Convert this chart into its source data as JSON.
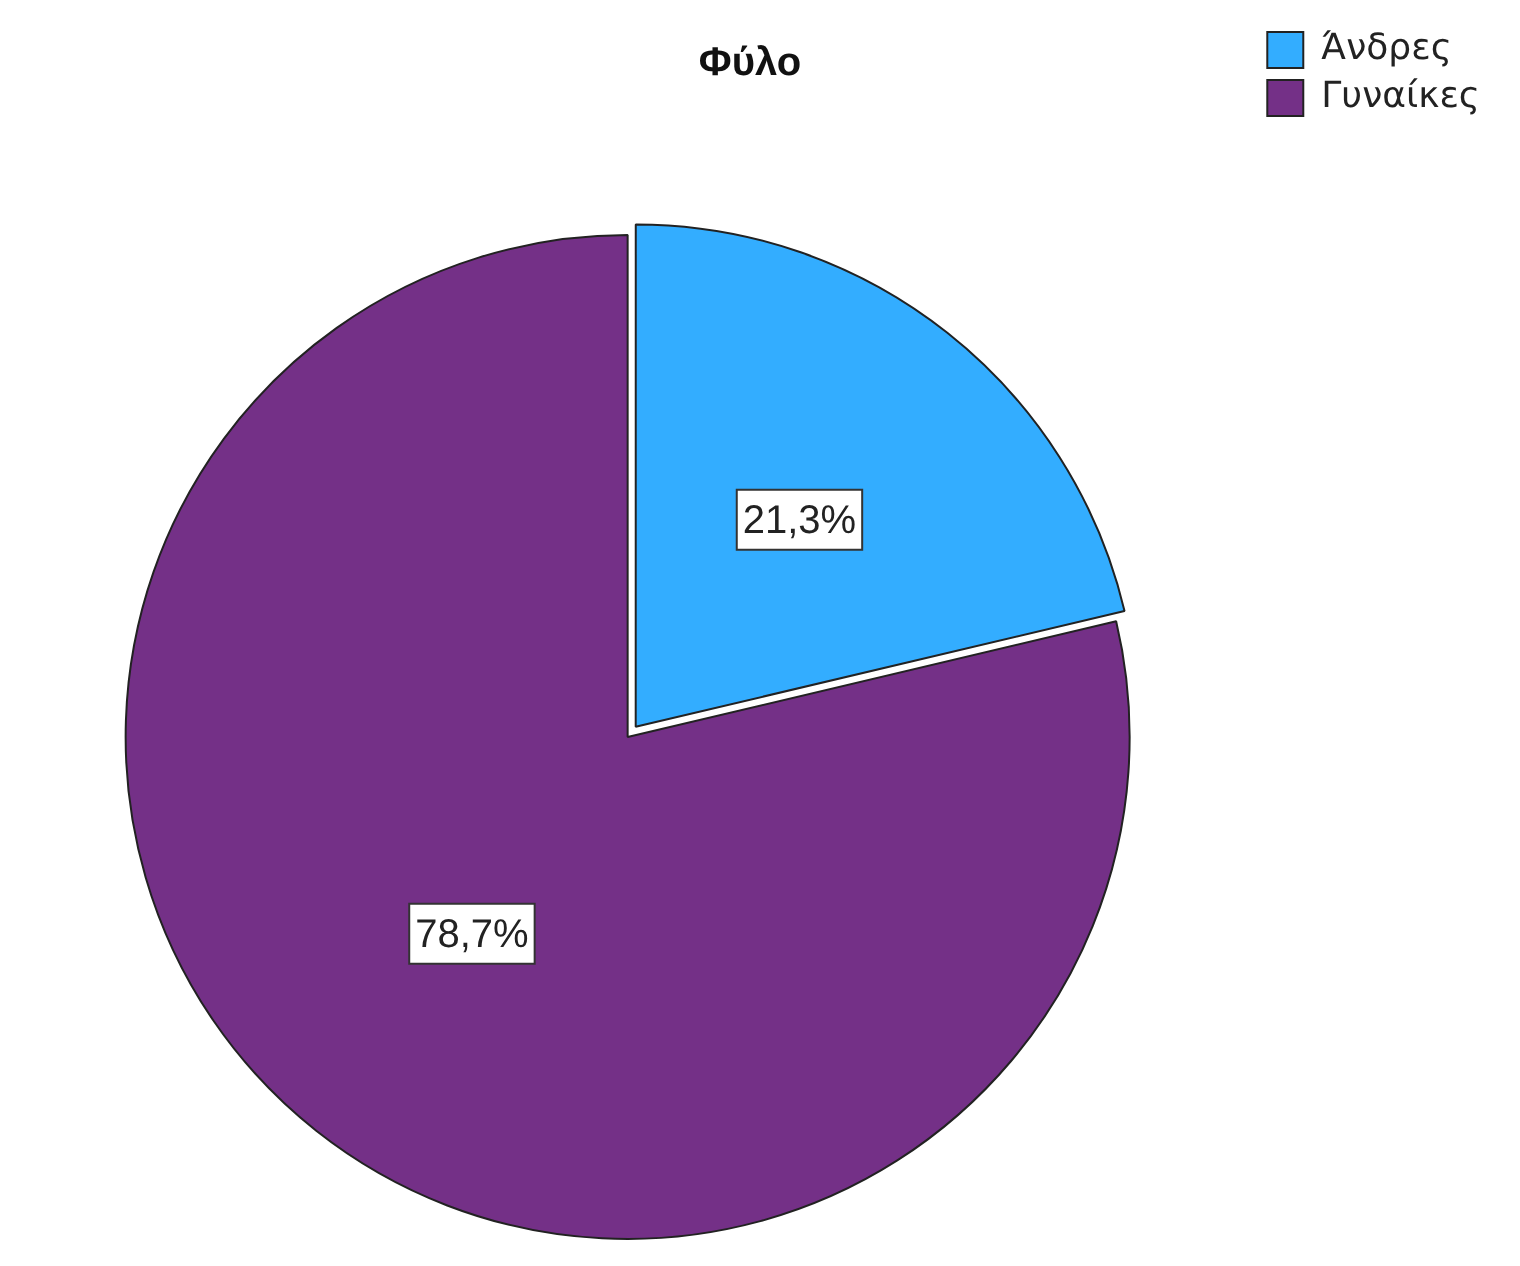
{
  "chart_data": {
    "type": "pie",
    "title": "Φύλο",
    "categories": [
      "Άνδρες",
      "Γυναίκες"
    ],
    "values": [
      21.3,
      78.7
    ],
    "colors": [
      "#33adff",
      "#743087"
    ],
    "value_labels": [
      "21,3%",
      "78,7%"
    ],
    "legend": "top right"
  }
}
